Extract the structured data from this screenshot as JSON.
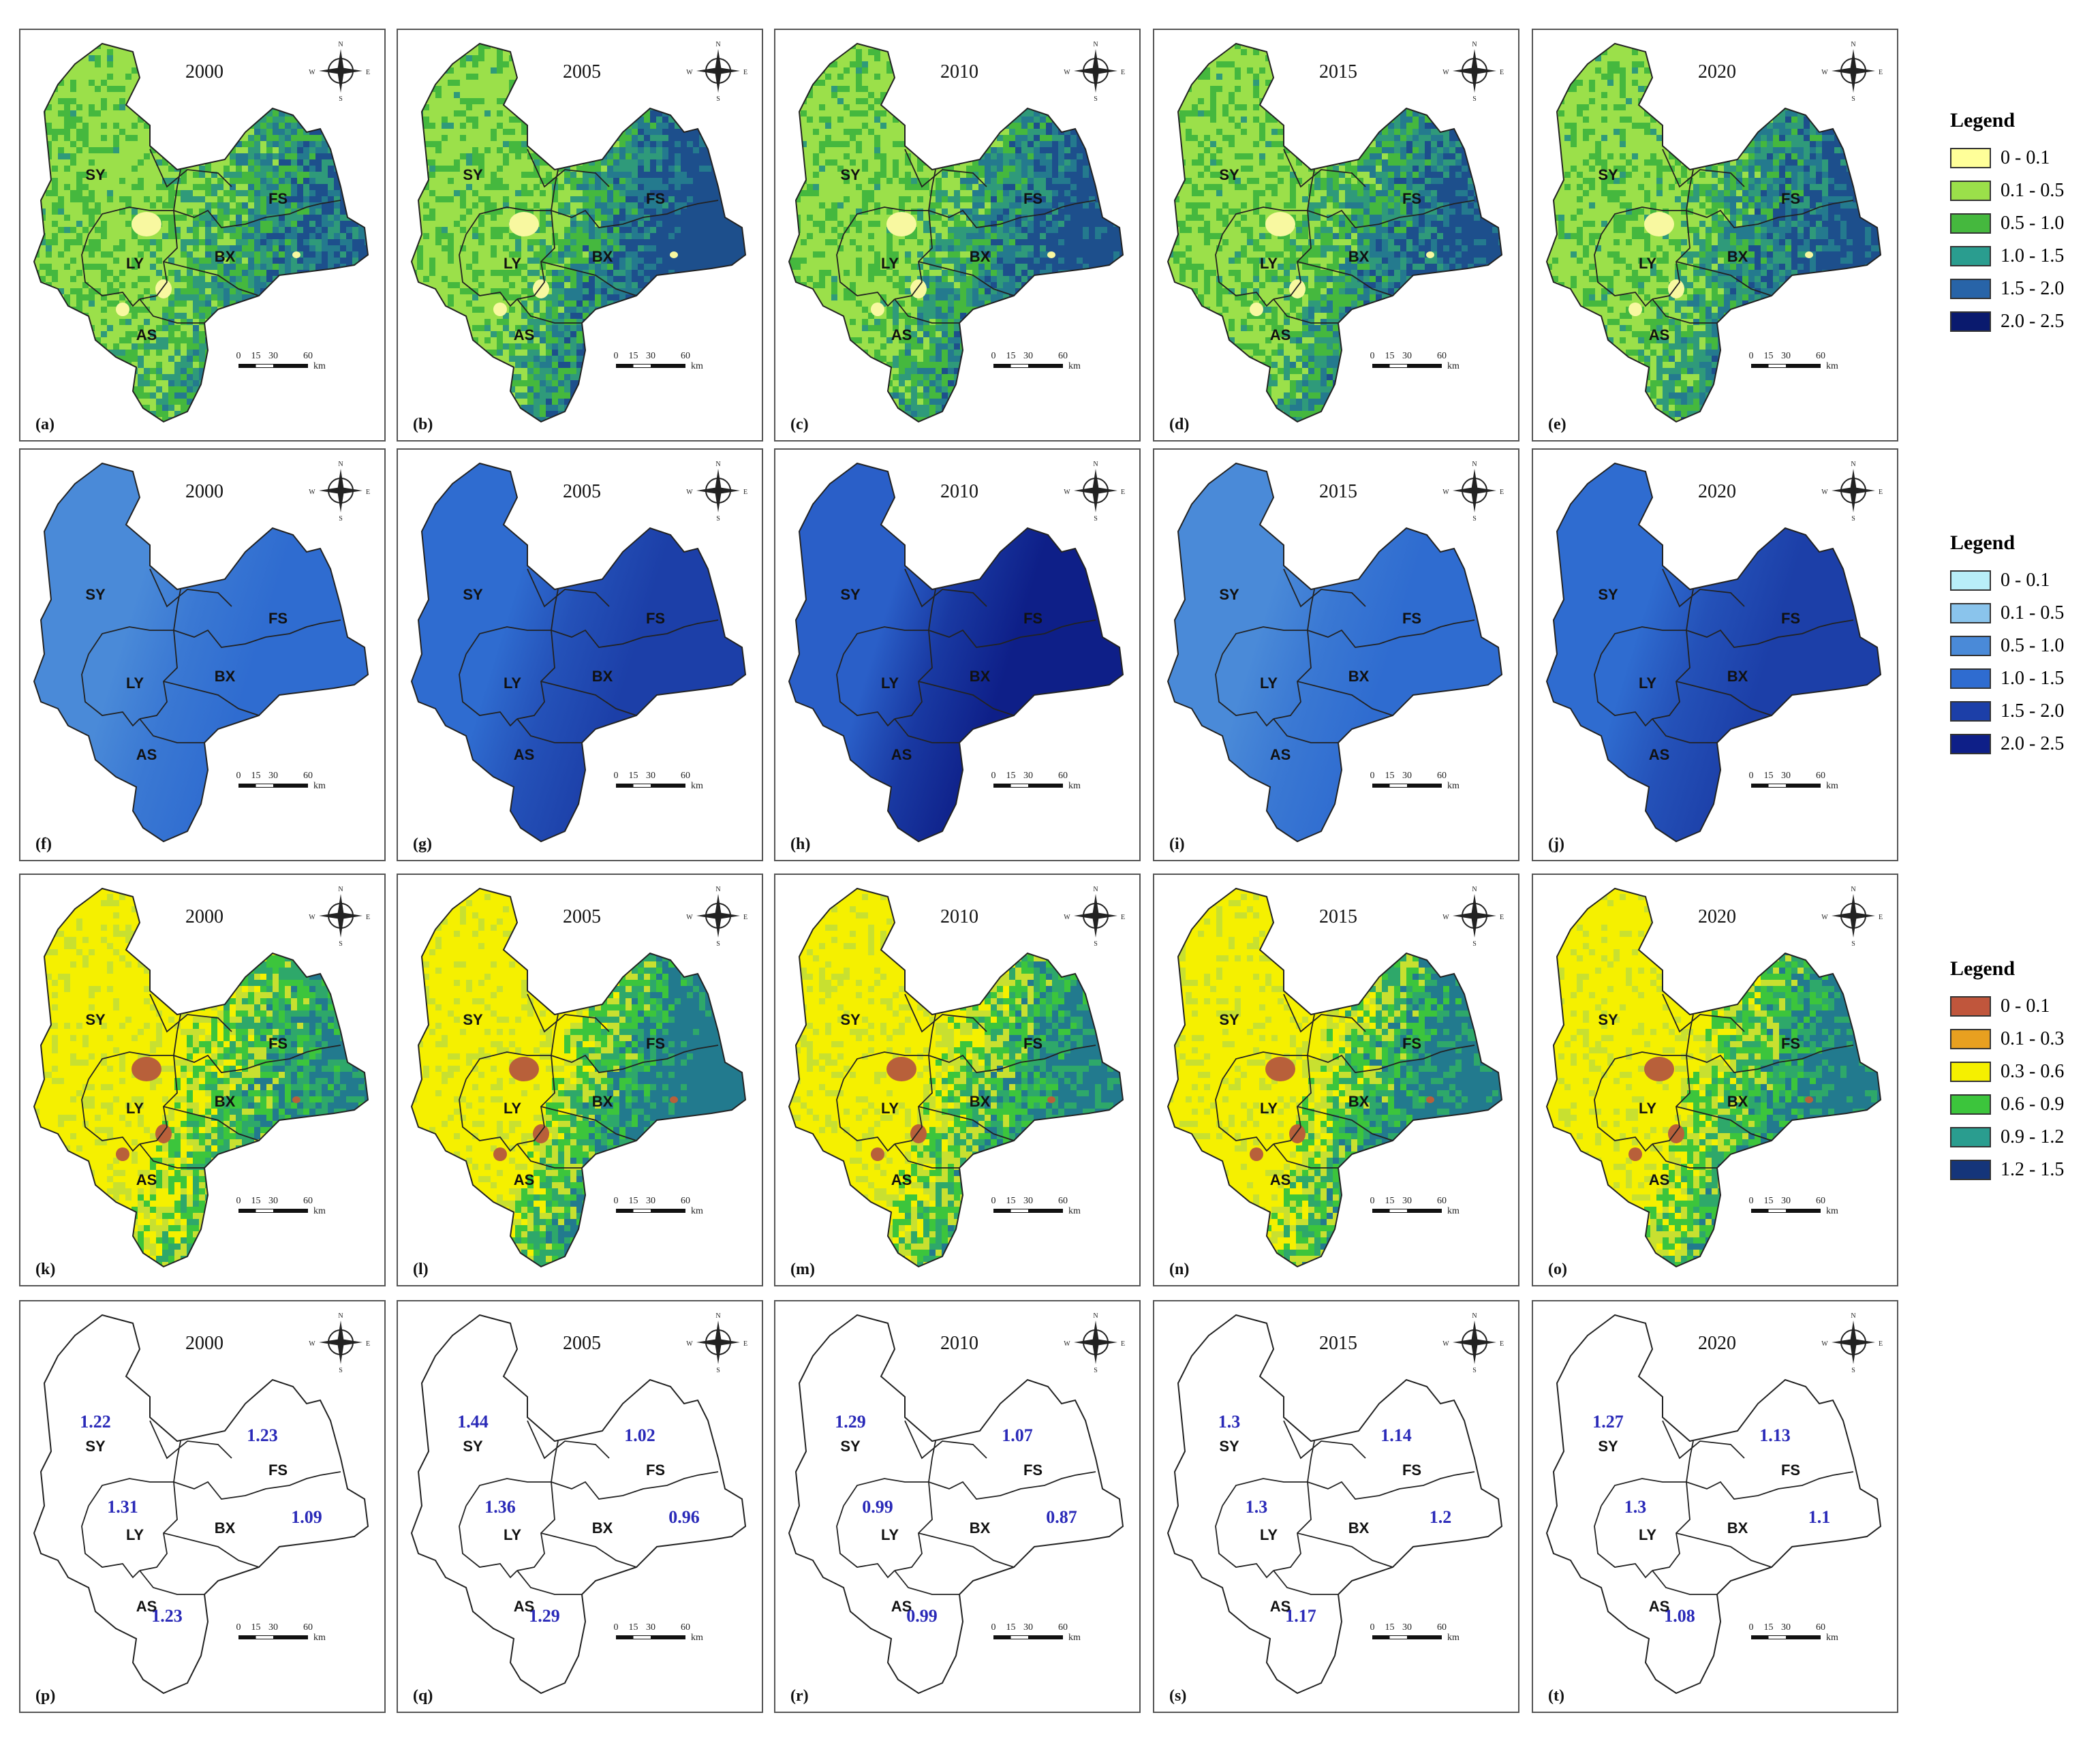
{
  "rows": [
    {
      "mode": "raster",
      "ramp": [
        "#9be04a",
        "#45b83e",
        "#2f9a7a",
        "#247a8e",
        "#1d4f8c"
      ],
      "panels": [
        {
          "letter": "(a)",
          "year": "2000",
          "shade": 0.25
        },
        {
          "letter": "(b)",
          "year": "2005",
          "shade": 0.75
        },
        {
          "letter": "(c)",
          "year": "2010",
          "shade": 0.55
        },
        {
          "letter": "(d)",
          "year": "2015",
          "shade": 0.45
        },
        {
          "letter": "(e)",
          "year": "2020",
          "shade": 0.45
        }
      ]
    },
    {
      "mode": "smooth",
      "panels": [
        {
          "letter": "(f)",
          "year": "2000",
          "west": "#4a8ad8",
          "east": "#2f6cd0"
        },
        {
          "letter": "(g)",
          "year": "2005",
          "west": "#2f6cd0",
          "east": "#1c3fa8"
        },
        {
          "letter": "(h)",
          "year": "2010",
          "west": "#2a5fc8",
          "east": "#0e1f88"
        },
        {
          "letter": "(i)",
          "year": "2015",
          "west": "#4a8ad8",
          "east": "#2f6cd0"
        },
        {
          "letter": "(j)",
          "year": "2020",
          "west": "#2f6cd0",
          "east": "#1c3fa8"
        }
      ]
    },
    {
      "mode": "raster",
      "ramp": [
        "#f5f000",
        "#c8e030",
        "#3cc53c",
        "#2ea86a",
        "#227a8e"
      ],
      "panels": [
        {
          "letter": "(k)",
          "year": "2000",
          "shade": 0.35
        },
        {
          "letter": "(l)",
          "year": "2005",
          "shade": 0.75
        },
        {
          "letter": "(m)",
          "year": "2010",
          "shade": 0.5
        },
        {
          "letter": "(n)",
          "year": "2015",
          "shade": 0.55
        },
        {
          "letter": "(o)",
          "year": "2020",
          "shade": 0.55
        }
      ]
    },
    {
      "mode": "outline",
      "panels": [
        {
          "letter": "(p)",
          "year": "2000",
          "values": {
            "SY": "1.22",
            "FS": "1.23",
            "BX": "1.09",
            "LY": "1.31",
            "AS": "1.23"
          }
        },
        {
          "letter": "(q)",
          "year": "2005",
          "values": {
            "SY": "1.44",
            "FS": "1.02",
            "BX": "0.96",
            "LY": "1.36",
            "AS": "1.29"
          }
        },
        {
          "letter": "(r)",
          "year": "2010",
          "values": {
            "SY": "1.29",
            "FS": "1.07",
            "BX": "0.87",
            "LY": "0.99",
            "AS": "0.99"
          }
        },
        {
          "letter": "(s)",
          "year": "2015",
          "values": {
            "SY": "1.3",
            "FS": "1.14",
            "BX": "1.2",
            "LY": "1.3",
            "AS": "1.17"
          }
        },
        {
          "letter": "(t)",
          "year": "2020",
          "values": {
            "SY": "1.27",
            "FS": "1.13",
            "BX": "1.1",
            "LY": "1.3",
            "AS": "1.08"
          }
        }
      ]
    }
  ],
  "regions": [
    "SY",
    "FS",
    "BX",
    "LY",
    "AS"
  ],
  "compass": {
    "n": "N",
    "s": "S",
    "e": "E",
    "w": "W"
  },
  "scale_bar": {
    "ticks": [
      "0",
      "15",
      "30",
      "60"
    ],
    "unit": "km"
  },
  "legends": [
    {
      "title": "Legend",
      "items": [
        {
          "label": "0 - 0.1",
          "color": "#ffff99"
        },
        {
          "label": "0.1 - 0.5",
          "color": "#9be04a"
        },
        {
          "label": "0.5 - 1.0",
          "color": "#45b83e"
        },
        {
          "label": "1.0 - 1.5",
          "color": "#2a9d8f"
        },
        {
          "label": "1.5 - 2.0",
          "color": "#2864a8"
        },
        {
          "label": "2.0 - 2.5",
          "color": "#0a1a6e"
        }
      ]
    },
    {
      "title": "Legend",
      "items": [
        {
          "label": "0 - 0.1",
          "color": "#b8eef8"
        },
        {
          "label": "0.1 - 0.5",
          "color": "#8ac4ec"
        },
        {
          "label": "0.5 - 1.0",
          "color": "#4a8ad8"
        },
        {
          "label": "1.0 - 1.5",
          "color": "#2f6cd0"
        },
        {
          "label": "1.5 - 2.0",
          "color": "#1c3fa8"
        },
        {
          "label": "2.0 - 2.5",
          "color": "#0e1f88"
        }
      ]
    },
    {
      "title": "Legend",
      "items": [
        {
          "label": "0 - 0.1",
          "color": "#c0563c"
        },
        {
          "label": "0.1 - 0.3",
          "color": "#e8a020"
        },
        {
          "label": "0.3 - 0.6",
          "color": "#f5f000"
        },
        {
          "label": "0.6 - 0.9",
          "color": "#3cc53c"
        },
        {
          "label": "0.9 - 1.2",
          "color": "#2a9d8f"
        },
        {
          "label": "1.2 - 1.5",
          "color": "#15357a"
        }
      ]
    }
  ]
}
